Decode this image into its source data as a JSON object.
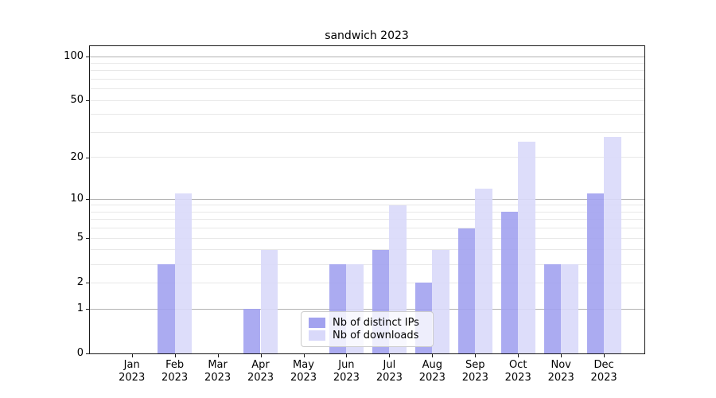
{
  "title": "sandwich 2023",
  "chart_data": {
    "type": "bar",
    "title": "sandwich 2023",
    "categories": [
      "Jan 2023",
      "Feb 2023",
      "Mar 2023",
      "Apr 2023",
      "May 2023",
      "Jun 2023",
      "Jul 2023",
      "Aug 2023",
      "Sep 2023",
      "Oct 2023",
      "Nov 2023",
      "Dec 2023"
    ],
    "x_tick_months": [
      "Jan",
      "Feb",
      "Mar",
      "Apr",
      "May",
      "Jun",
      "Jul",
      "Aug",
      "Sep",
      "Oct",
      "Nov",
      "Dec"
    ],
    "x_tick_year": "2023",
    "series": [
      {
        "name": "Nb of distinct IPs",
        "color": "#a2a2ef",
        "values": [
          0,
          3,
          0,
          1,
          0,
          3,
          4,
          2,
          6,
          8,
          3,
          11
        ]
      },
      {
        "name": "Nb of downloads",
        "color": "#d9d9fa",
        "values": [
          0,
          11,
          0,
          4,
          0,
          3,
          9,
          4,
          12,
          26,
          3,
          28
        ]
      }
    ],
    "xlabel": "",
    "ylabel": "",
    "yscale": "log1p",
    "ylim": [
      0,
      117
    ],
    "y_tick_labels": [
      "0",
      "1",
      "2",
      "5",
      "10",
      "20",
      "50",
      "100"
    ],
    "y_tick_values": [
      0,
      1,
      2,
      5,
      10,
      20,
      50,
      100
    ],
    "y_major_grid_values": [
      1,
      10,
      100
    ],
    "y_minor_grid_values": [
      2,
      3,
      4,
      5,
      6,
      7,
      8,
      9,
      20,
      30,
      40,
      50,
      60,
      70,
      80,
      90
    ],
    "grid": true,
    "legend_position": "lower center",
    "colors": {
      "major_grid": "#b2b2b2",
      "minor_grid": "#e8e8e8",
      "spine": "#1a1a1a",
      "background": "#ffffff"
    }
  }
}
